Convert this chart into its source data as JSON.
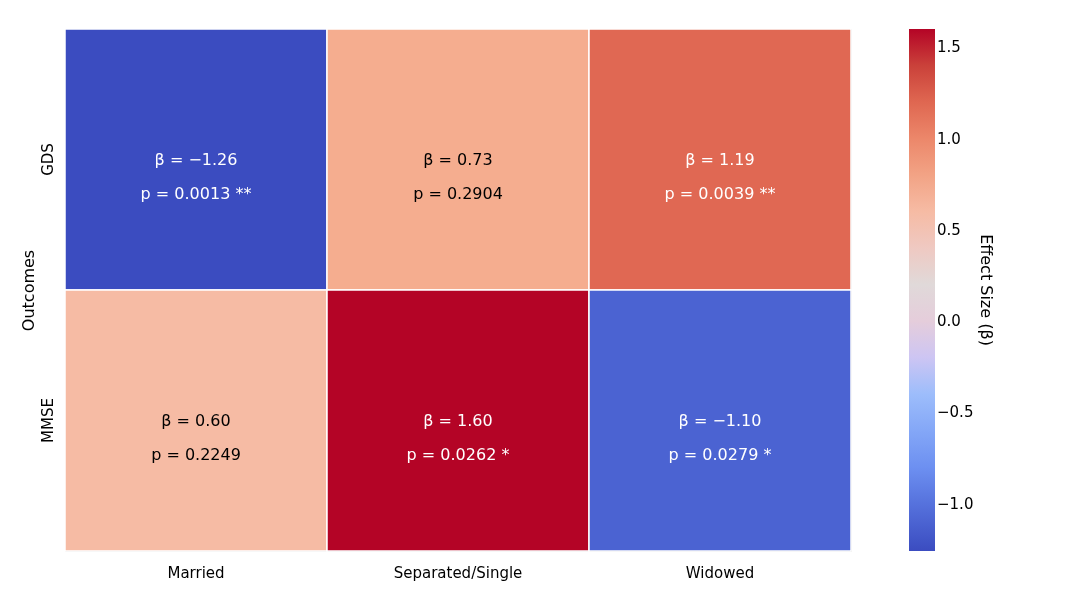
{
  "chart_data": {
    "type": "heatmap",
    "ylabel": "Outcomes",
    "clabel": "Effect Size (β)",
    "categories": [
      "Married",
      "Separated/Single",
      "Widowed"
    ],
    "y_categories": [
      "GDS",
      "MMSE"
    ],
    "cells": [
      [
        -1.26,
        0.73,
        1.19
      ],
      [
        0.6,
        1.6,
        -1.1
      ]
    ],
    "cell_labels": [
      [
        "β = −1.26\np = 0.0013 **",
        "β =  0.73\np = 0.2904",
        "β = 1.19\np = 0.0039 **"
      ],
      [
        "β =  0.60\np = 0.2249",
        "β = 1.60\np = 0.0262 *",
        "β = −1.10\np = 0.0279 *"
      ]
    ],
    "clim": [
      -1.26,
      1.6
    ],
    "cticks": [
      {
        "value": -1.0,
        "label": "−1.0"
      },
      {
        "value": -0.5,
        "label": "−0.5"
      },
      {
        "value": 0.0,
        "label": "0.0"
      },
      {
        "value": 0.5,
        "label": "0.5"
      },
      {
        "value": 1.0,
        "label": "1.0"
      },
      {
        "value": 1.5,
        "label": "1.5"
      }
    ]
  }
}
